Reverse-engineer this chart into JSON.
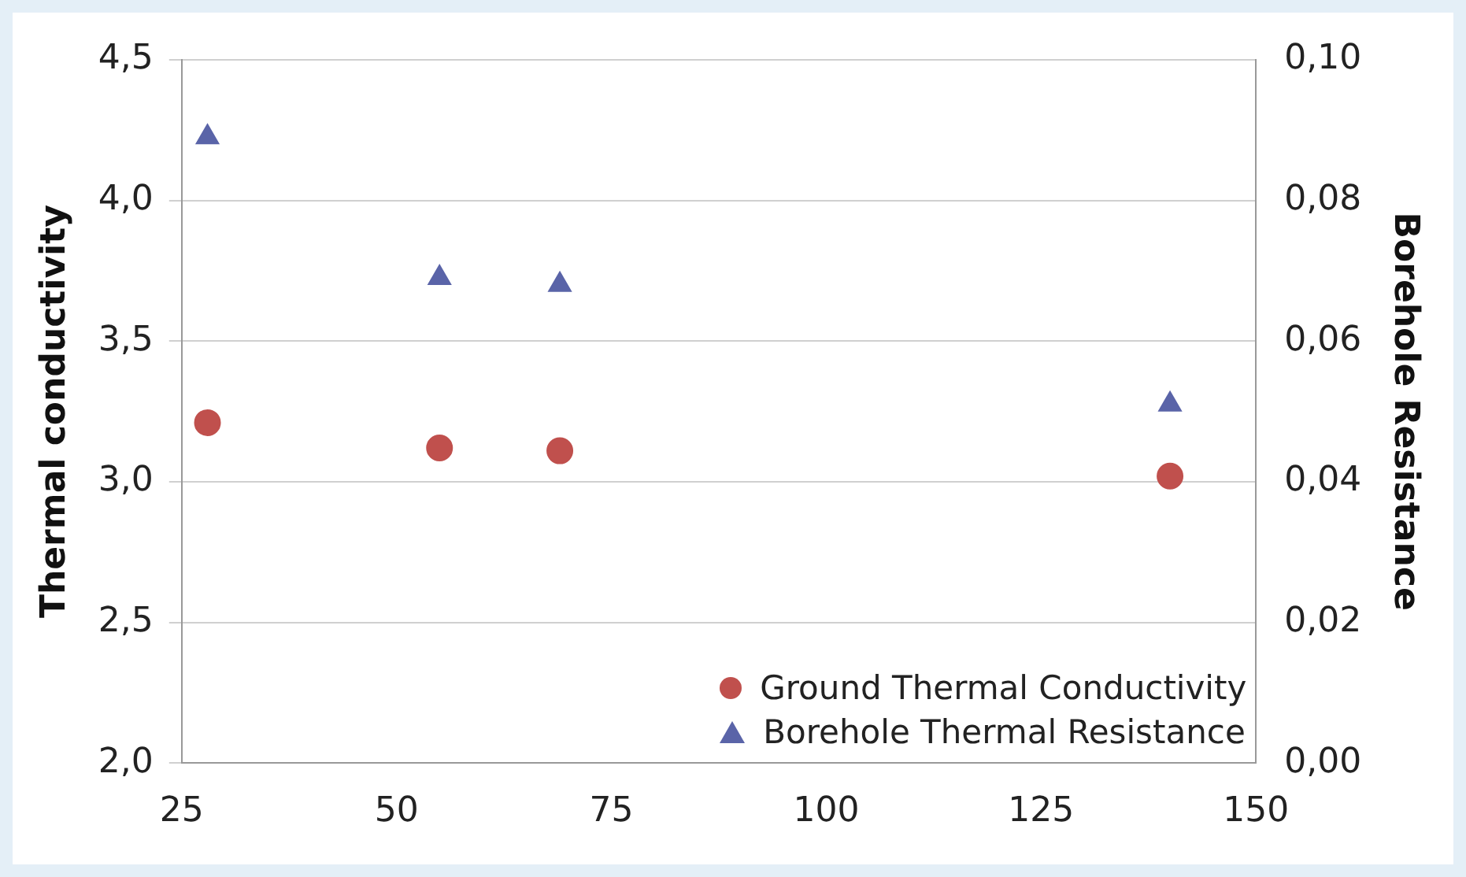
{
  "chart_data": {
    "type": "scatter",
    "ylabel": "Thermal conductivity",
    "y2label": "Borehole Resistance",
    "xlim": [
      25,
      150
    ],
    "xticks": [
      25,
      50,
      75,
      100,
      125,
      150
    ],
    "ylim": [
      2.0,
      4.5
    ],
    "yticks": [
      {
        "value": 2.0,
        "label": "2,0"
      },
      {
        "value": 2.5,
        "label": "2,5"
      },
      {
        "value": 3.0,
        "label": "3,0"
      },
      {
        "value": 3.5,
        "label": "3,5"
      },
      {
        "value": 4.0,
        "label": "4,0"
      },
      {
        "value": 4.5,
        "label": "4,5"
      }
    ],
    "y2lim": [
      0,
      0.1
    ],
    "y2ticks": [
      {
        "value": 0,
        "label": "0,00"
      },
      {
        "value": 0.02,
        "label": "0,02"
      },
      {
        "value": 0.04,
        "label": "0,04"
      },
      {
        "value": 0.06,
        "label": "0,06"
      },
      {
        "value": 0.08,
        "label": "0,08"
      },
      {
        "value": 0.1,
        "label": "0,10"
      }
    ],
    "grid": "y",
    "legend": "bottom right",
    "series": [
      {
        "name": "Ground Thermal Conductivity",
        "color": "#c0504d",
        "marker": "circle",
        "x": [
          28,
          55,
          69,
          140
        ],
        "values": [
          3.21,
          3.12,
          3.11,
          3.02
        ]
      },
      {
        "name": "Borehole Thermal Resistance",
        "color": "#5a64a8",
        "marker": "triangle",
        "axis": "y2",
        "x": [
          28,
          55,
          69,
          140
        ],
        "values": [
          0.089,
          0.069,
          0.068,
          0.051
        ]
      }
    ]
  }
}
